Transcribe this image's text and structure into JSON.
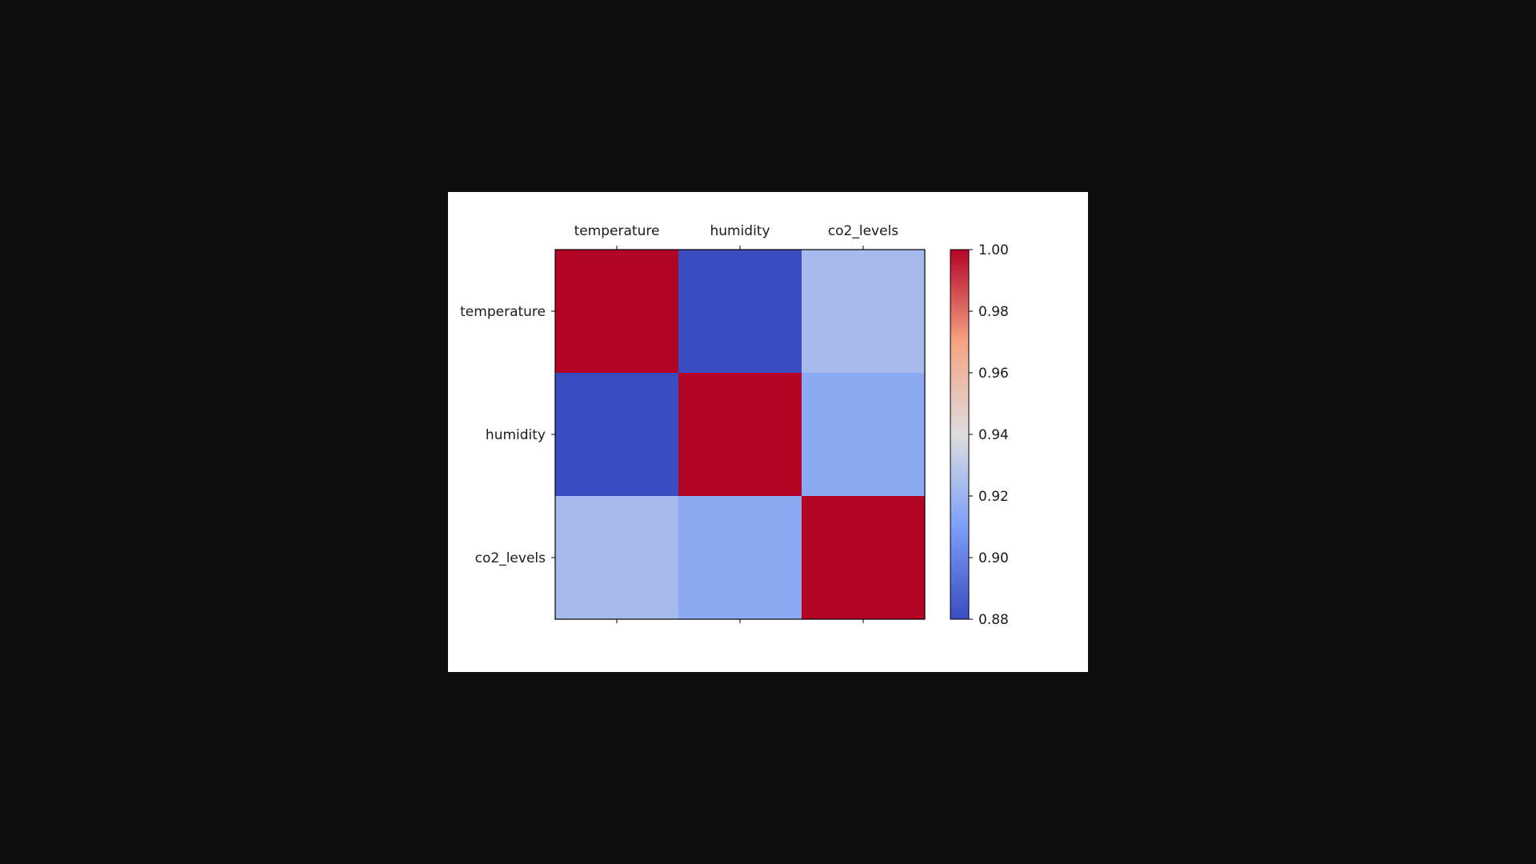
{
  "chart_data": {
    "type": "heatmap",
    "title": "",
    "xlabel": "",
    "ylabel": "",
    "x_categories": [
      "temperature",
      "humidity",
      "co2_levels"
    ],
    "y_categories": [
      "temperature",
      "humidity",
      "co2_levels"
    ],
    "values": [
      [
        1.0,
        0.88,
        0.923
      ],
      [
        0.88,
        1.0,
        0.915
      ],
      [
        0.923,
        0.915,
        1.0
      ]
    ],
    "colormap": "coolwarm",
    "colorbar": {
      "range": [
        0.88,
        1.0
      ],
      "ticks": [
        0.88,
        0.9,
        0.92,
        0.94,
        0.96,
        0.98,
        1.0
      ],
      "tick_labels": [
        "0.88",
        "0.90",
        "0.92",
        "0.94",
        "0.96",
        "0.98",
        "1.00"
      ]
    },
    "x_tick_position": "top",
    "grid": false,
    "colors": {
      "low": "#3b4cc0",
      "mid": "#dddddd",
      "high": "#b40426"
    }
  }
}
